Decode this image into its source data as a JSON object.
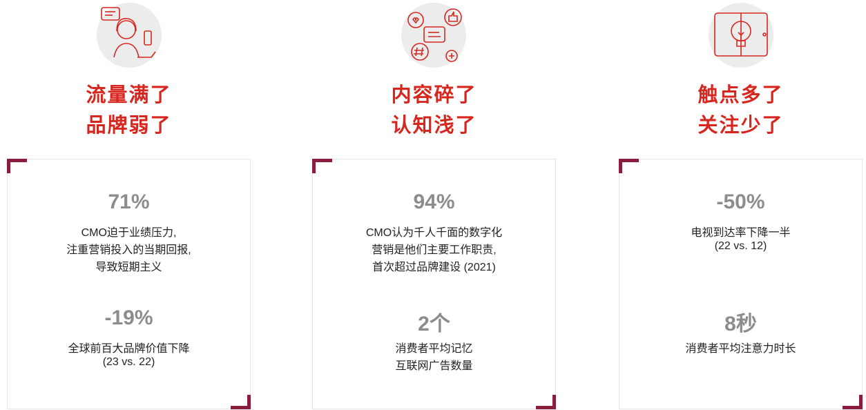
{
  "columns": [
    {
      "title": [
        "流量满了",
        "品牌弱了"
      ],
      "stats": [
        {
          "value": "71%",
          "lines": [
            "CMO迫于业绩压力,",
            "注重营销投入的当期回报,",
            "导致短期主义"
          ]
        },
        {
          "value": "-19%",
          "lines": [
            "全球前百大品牌价值下降",
            "(23 vs. 22)"
          ]
        }
      ]
    },
    {
      "title": [
        "内容碎了",
        "认知浅了"
      ],
      "stats": [
        {
          "value": "94%",
          "lines": [
            "CMO认为千人千面的数字化",
            "营销是他们主要工作职责,",
            "首次超过品牌建设 (2021)"
          ]
        },
        {
          "value": "2个",
          "lines": [
            "消费者平均记忆",
            "互联网广告数量"
          ]
        }
      ]
    },
    {
      "title": [
        "触点多了",
        "关注少了"
      ],
      "stats": [
        {
          "value": "-50%",
          "lines": [
            "电视到达率下降一半",
            "(22 vs. 12)"
          ]
        },
        {
          "value": "8秒",
          "lines": [
            "消费者平均注意力时长"
          ]
        }
      ]
    }
  ]
}
